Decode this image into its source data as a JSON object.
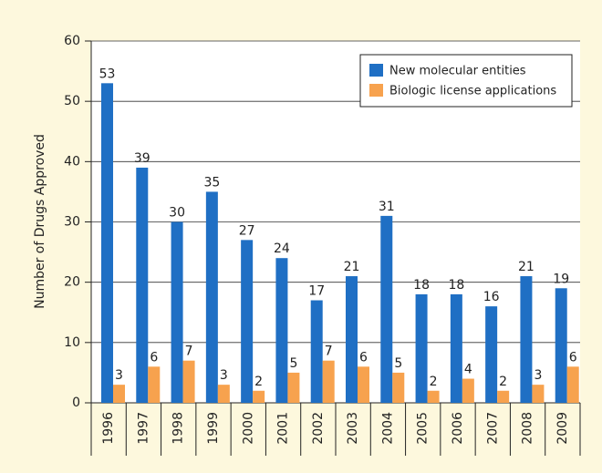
{
  "chart_data": {
    "type": "bar",
    "y_label": "Number of Drugs Approved",
    "categories": [
      "1996",
      "1997",
      "1998",
      "1999",
      "2000",
      "2001",
      "2002",
      "2003",
      "2004",
      "2005",
      "2006",
      "2007",
      "2008",
      "2009"
    ],
    "series": [
      {
        "name": "New molecular entities",
        "color": "#1f6fc4",
        "values": [
          53,
          39,
          30,
          35,
          27,
          24,
          17,
          21,
          31,
          18,
          18,
          16,
          21,
          19
        ]
      },
      {
        "name": "Biologic license applications",
        "color": "#f7a24e",
        "values": [
          3,
          6,
          7,
          3,
          2,
          5,
          7,
          6,
          5,
          2,
          4,
          2,
          3,
          6
        ]
      }
    ],
    "ylim": [
      0,
      60
    ],
    "yticks": [
      0,
      10,
      20,
      30,
      40,
      50,
      60
    ],
    "grid": true,
    "legend": "top-right"
  }
}
